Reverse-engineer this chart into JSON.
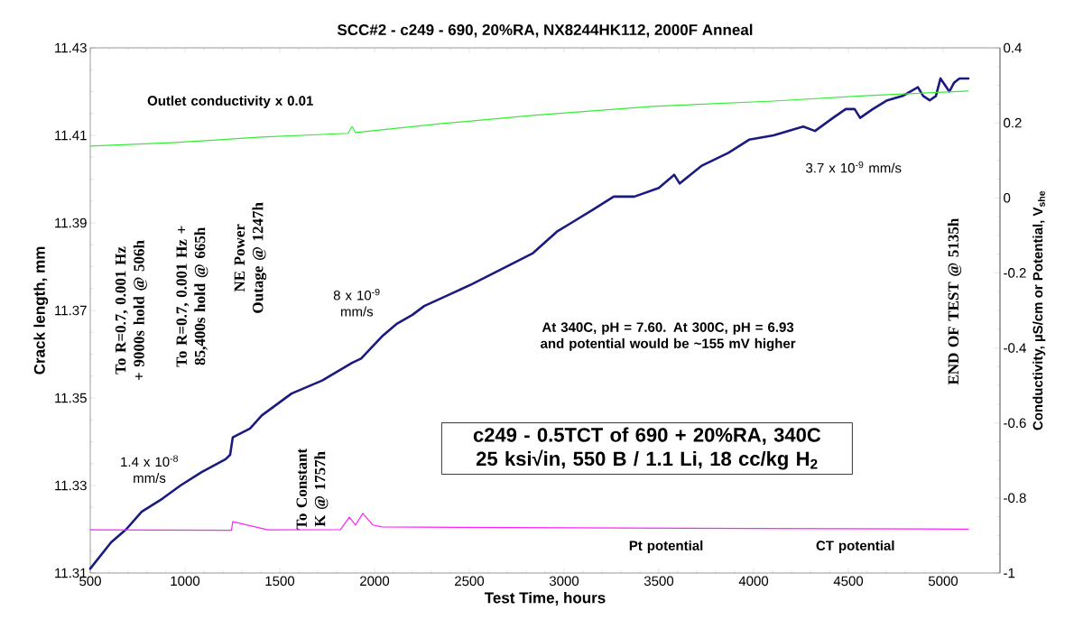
{
  "chart_data": {
    "type": "line",
    "title": "SCC#2 - c249 - 690, 20%RA, NX8244HK112, 2000F Anneal",
    "xlabel": "Test Time, hours",
    "ylabel": "Crack length, mm",
    "y2label": "Conductivity, µS/cm or Potential, V$_{she}$",
    "xlim": [
      500,
      5300
    ],
    "xticks": [
      500,
      1000,
      1500,
      2000,
      2500,
      3000,
      3500,
      4000,
      4500,
      5000
    ],
    "ylim": [
      11.31,
      11.43
    ],
    "yticks": [
      11.31,
      11.33,
      11.35,
      11.37,
      11.39,
      11.41,
      11.43
    ],
    "y2lim": [
      -1,
      0.4
    ],
    "y2ticks": [
      -1,
      -0.8,
      -0.6,
      -0.4,
      -0.2,
      0,
      0.2,
      0.4
    ],
    "series": [
      {
        "color": "#1a1a80",
        "x": [
          500,
          610,
          690,
          771,
          881,
          976,
          1086,
          1214,
          1238,
          1252,
          1343,
          1405,
          1562,
          1724,
          1881,
          1929,
          2038,
          2119,
          2200,
          2262,
          2514,
          2833,
          2962,
          3038,
          3152,
          3262,
          3371,
          3500,
          3581,
          3610,
          3724,
          3867,
          3976,
          4105,
          4262,
          4324,
          4419,
          4486,
          4533,
          4562,
          4629,
          4705,
          4786,
          4867,
          4895,
          4929,
          4962,
          4986,
          5033,
          5057,
          5086,
          5133
        ],
        "values": [
          11.311,
          11.317,
          11.32,
          11.324,
          11.327,
          11.33,
          11.333,
          11.336,
          11.337,
          11.341,
          11.343,
          11.346,
          11.351,
          11.354,
          11.358,
          11.359,
          11.364,
          11.367,
          11.369,
          11.371,
          11.376,
          11.383,
          11.388,
          11.39,
          11.393,
          11.396,
          11.396,
          11.398,
          11.401,
          11.399,
          11.403,
          11.406,
          11.409,
          11.41,
          11.412,
          11.411,
          11.414,
          11.416,
          11.416,
          11.414,
          11.416,
          11.418,
          11.419,
          11.421,
          11.419,
          11.418,
          11.419,
          11.423,
          11.42,
          11.422,
          11.423,
          11.423
        ]
      },
      {
        "color": "#33ee33",
        "axis": "y2",
        "x": [
          500,
          929,
          1405,
          1860,
          1881,
          1900,
          2357,
          2833,
          3467,
          4105,
          4581,
          5133
        ],
        "values": [
          0.138,
          0.147,
          0.162,
          0.172,
          0.19,
          0.174,
          0.198,
          0.22,
          0.244,
          0.258,
          0.272,
          0.285
        ]
      },
      {
        "color": "#ff22ff",
        "axis": "y2",
        "x": [
          500,
          1245,
          1252,
          1438,
          1820,
          1867,
          1900,
          1938,
          1991,
          2038,
          2700,
          4000,
          5133
        ],
        "values": [
          -0.885,
          -0.886,
          -0.863,
          -0.885,
          -0.884,
          -0.851,
          -0.872,
          -0.841,
          -0.872,
          -0.877,
          -0.879,
          -0.881,
          -0.883
        ]
      }
    ],
    "annotations": [
      "Outlet conductivity x 0.01",
      "3.7 x 10$^{-9}$ mm/s",
      "8 x 10$^{-9}$ mm/s",
      "1.4 x 10$^{-8}$ mm/s",
      "To R=0.7, 0.001 Hz + 9000s hold @ 506h",
      "To R=0.7, 0.001 Hz + 85,400s hold @ 665h",
      "NE Power Outage @ 1247h",
      "To Constant K @ 1757h",
      "END OF TEST @ 5135h",
      "At 340C, pH = 7.60.  At 300C, pH = 6.93 and potential would be ~155 mV higher",
      "c249 - 0.5TCT of 690 + 20%RA, 340C 25 ksi√in, 550 B / 1.1 Li, 18 cc/kg H$_{2}$",
      "Pt potential",
      "CT potential"
    ]
  }
}
